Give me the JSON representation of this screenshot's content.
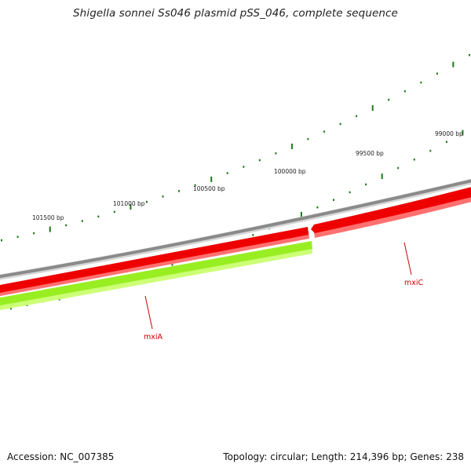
{
  "title": "Shigella sonnei Ss046 plasmid pSS_046, complete sequence",
  "accession_text": "Accession: NC_007385",
  "summary_text": "Topology: circular; Length: 214,396 bp; Genes: 238",
  "colors": {
    "backbone": "#8a8a8a",
    "forward_gene": "#ee0000",
    "reverse_gene": "#99ee22",
    "tick": "#1a7a1a",
    "gene_label": "#cc0000"
  },
  "tick_labels": [
    "101500 bp",
    "101000 bp",
    "100500 bp",
    "100000 bp",
    "99500 bp",
    "99000 bp"
  ],
  "genes": [
    {
      "name": "mxiC",
      "strand": "forward"
    },
    {
      "name": "mxiA",
      "strand": "reverse"
    }
  ]
}
